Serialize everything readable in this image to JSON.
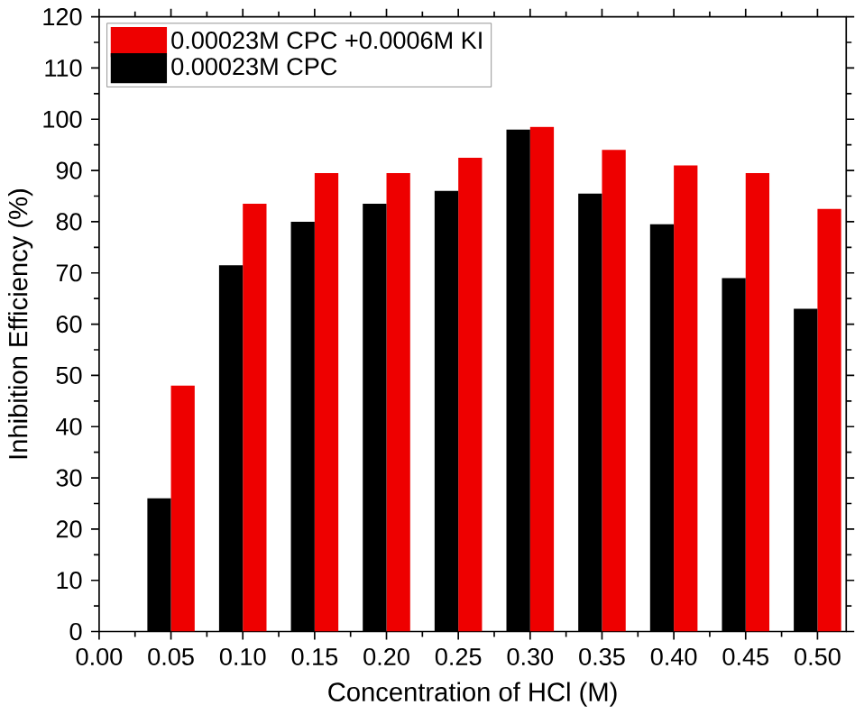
{
  "chart_data": {
    "type": "bar",
    "xlabel": "Concentration of HCl (M)",
    "ylabel": "Inhibition Efficiency (%)",
    "x": [
      0.05,
      0.1,
      0.15,
      0.2,
      0.25,
      0.3,
      0.35,
      0.4,
      0.45,
      0.5
    ],
    "series": [
      {
        "name": "0.00023M CPC +0.0006M KI",
        "color": "#ee0000",
        "values": [
          48,
          83.5,
          89.5,
          89.5,
          92.5,
          98.5,
          94,
          91,
          89.5,
          82.5
        ]
      },
      {
        "name": "0.00023M CPC",
        "color": "#000000",
        "values": [
          26,
          71.5,
          80,
          83.5,
          86,
          98,
          85.5,
          79.5,
          69,
          63
        ]
      }
    ],
    "xlim": [
      0,
      0.52
    ],
    "ylim": [
      0,
      120
    ],
    "xticks": [
      {
        "value": 0,
        "label": "0.00"
      },
      0.05,
      {
        "value": 0.1,
        "label": "0.10"
      },
      0.15,
      {
        "value": 0.2,
        "label": "0.20"
      },
      0.25,
      {
        "value": 0.3,
        "label": "0.30"
      },
      0.35,
      {
        "value": 0.4,
        "label": "0.40"
      },
      0.45,
      {
        "value": 0.5,
        "label": "0.50"
      }
    ],
    "yticks": [
      0,
      10,
      20,
      30,
      40,
      50,
      60,
      70,
      80,
      90,
      100,
      110,
      120
    ],
    "legend": "top left"
  }
}
